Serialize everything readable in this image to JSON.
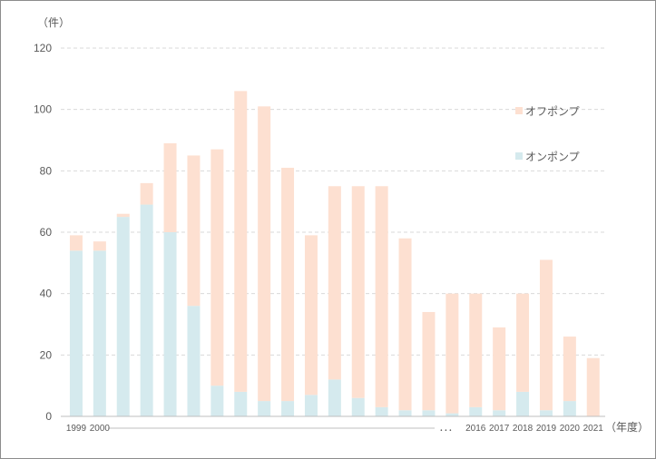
{
  "chart_data": {
    "type": "bar",
    "stacked": true,
    "title": "",
    "xlabel": "",
    "ylabel": "",
    "y_unit_label": "（件）",
    "x_unit_label": "（年度）",
    "ylim": [
      0,
      120
    ],
    "yticks": [
      0,
      20,
      40,
      60,
      80,
      100,
      120
    ],
    "grid": true,
    "legend_position": "right",
    "break_marker": "．．．",
    "categories": [
      "1999",
      "2000",
      "",
      "",
      "",
      "",
      "",
      "",
      "",
      "",
      "",
      "",
      "",
      "",
      "",
      "",
      "",
      "2016",
      "2017",
      "2018",
      "2019",
      "2020",
      "2021"
    ],
    "series": [
      {
        "name": "オンポンプ",
        "color": "#d5eaee",
        "values": [
          54,
          54,
          65,
          69,
          60,
          36,
          10,
          8,
          5,
          5,
          7,
          12,
          6,
          3,
          2,
          2,
          1,
          3,
          2,
          8,
          2,
          5,
          0
        ]
      },
      {
        "name": "オフポンプ",
        "color": "#fde0d1",
        "values": [
          5,
          3,
          1,
          7,
          29,
          49,
          77,
          98,
          96,
          76,
          52,
          63,
          69,
          72,
          56,
          32,
          39,
          37,
          27,
          32,
          49,
          21,
          19
        ]
      }
    ]
  }
}
